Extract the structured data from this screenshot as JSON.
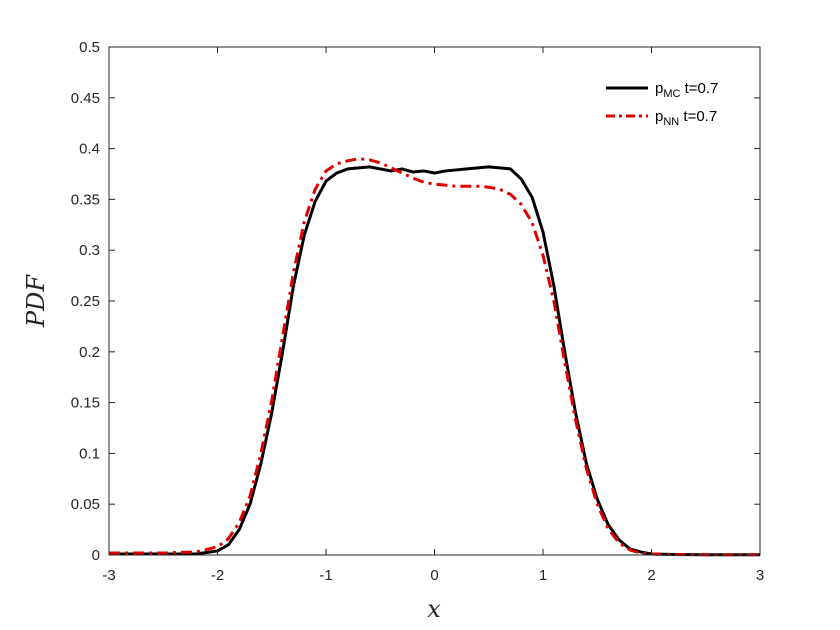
{
  "chart_data": {
    "type": "line",
    "xlabel": "x",
    "ylabel": "PDF",
    "xlim": [
      -3,
      3
    ],
    "ylim": [
      0,
      0.5
    ],
    "x_ticks": [
      -3,
      -2,
      -1,
      0,
      1,
      2,
      3
    ],
    "y_ticks": [
      0,
      0.05,
      0.1,
      0.15,
      0.2,
      0.25,
      0.3,
      0.35,
      0.4,
      0.45,
      0.5
    ],
    "x_tick_labels": [
      "-3",
      "-2",
      "-1",
      "0",
      "1",
      "2",
      "3"
    ],
    "y_tick_labels": [
      "0",
      "0.05",
      "0.1",
      "0.15",
      "0.2",
      "0.25",
      "0.3",
      "0.35",
      "0.4",
      "0.45",
      "0.5"
    ],
    "grid": false,
    "legend_position": "top-right",
    "series": [
      {
        "name": "p_MC t=0.7",
        "legend_main": "p",
        "legend_sub": "MC",
        "legend_rest": " t=0.7",
        "color": "#000000",
        "dash": "solid",
        "x": [
          -3,
          -2.5,
          -2.2,
          -2.0,
          -1.9,
          -1.8,
          -1.7,
          -1.6,
          -1.5,
          -1.4,
          -1.3,
          -1.2,
          -1.1,
          -1.0,
          -0.9,
          -0.8,
          -0.7,
          -0.6,
          -0.5,
          -0.4,
          -0.3,
          -0.2,
          -0.1,
          0.0,
          0.1,
          0.2,
          0.3,
          0.4,
          0.5,
          0.6,
          0.7,
          0.8,
          0.9,
          1.0,
          1.1,
          1.2,
          1.3,
          1.4,
          1.5,
          1.6,
          1.7,
          1.8,
          1.9,
          2.0,
          2.2,
          2.5,
          3.0
        ],
        "y": [
          0.001,
          0.001,
          0.001,
          0.004,
          0.01,
          0.025,
          0.05,
          0.09,
          0.14,
          0.2,
          0.265,
          0.315,
          0.348,
          0.368,
          0.376,
          0.38,
          0.381,
          0.382,
          0.38,
          0.378,
          0.38,
          0.377,
          0.378,
          0.376,
          0.378,
          0.379,
          0.38,
          0.381,
          0.382,
          0.381,
          0.38,
          0.37,
          0.352,
          0.318,
          0.265,
          0.2,
          0.14,
          0.09,
          0.055,
          0.03,
          0.015,
          0.006,
          0.003,
          0.001,
          0.0005,
          0.0003,
          0.0003
        ]
      },
      {
        "name": "p_NN t=0.7",
        "legend_main": "p",
        "legend_sub": "NN",
        "legend_rest": " t=0.7",
        "color": "#e00000",
        "dash": "dashdot",
        "x": [
          -3,
          -2.5,
          -2.2,
          -2.0,
          -1.9,
          -1.8,
          -1.7,
          -1.6,
          -1.5,
          -1.4,
          -1.3,
          -1.2,
          -1.1,
          -1.0,
          -0.9,
          -0.8,
          -0.7,
          -0.6,
          -0.5,
          -0.4,
          -0.3,
          -0.2,
          -0.1,
          0.0,
          0.1,
          0.2,
          0.3,
          0.4,
          0.5,
          0.6,
          0.7,
          0.8,
          0.9,
          1.0,
          1.1,
          1.2,
          1.3,
          1.4,
          1.5,
          1.6,
          1.7,
          1.8,
          1.9,
          2.0,
          2.2,
          2.5,
          3.0
        ],
        "y": [
          0.002,
          0.002,
          0.003,
          0.008,
          0.016,
          0.032,
          0.058,
          0.1,
          0.152,
          0.215,
          0.278,
          0.328,
          0.36,
          0.378,
          0.385,
          0.388,
          0.39,
          0.389,
          0.386,
          0.381,
          0.376,
          0.371,
          0.367,
          0.365,
          0.364,
          0.363,
          0.363,
          0.363,
          0.362,
          0.36,
          0.355,
          0.345,
          0.327,
          0.295,
          0.25,
          0.19,
          0.133,
          0.085,
          0.05,
          0.026,
          0.012,
          0.005,
          0.002,
          0.001,
          0.0005,
          0.0003,
          0.0003
        ]
      }
    ]
  }
}
